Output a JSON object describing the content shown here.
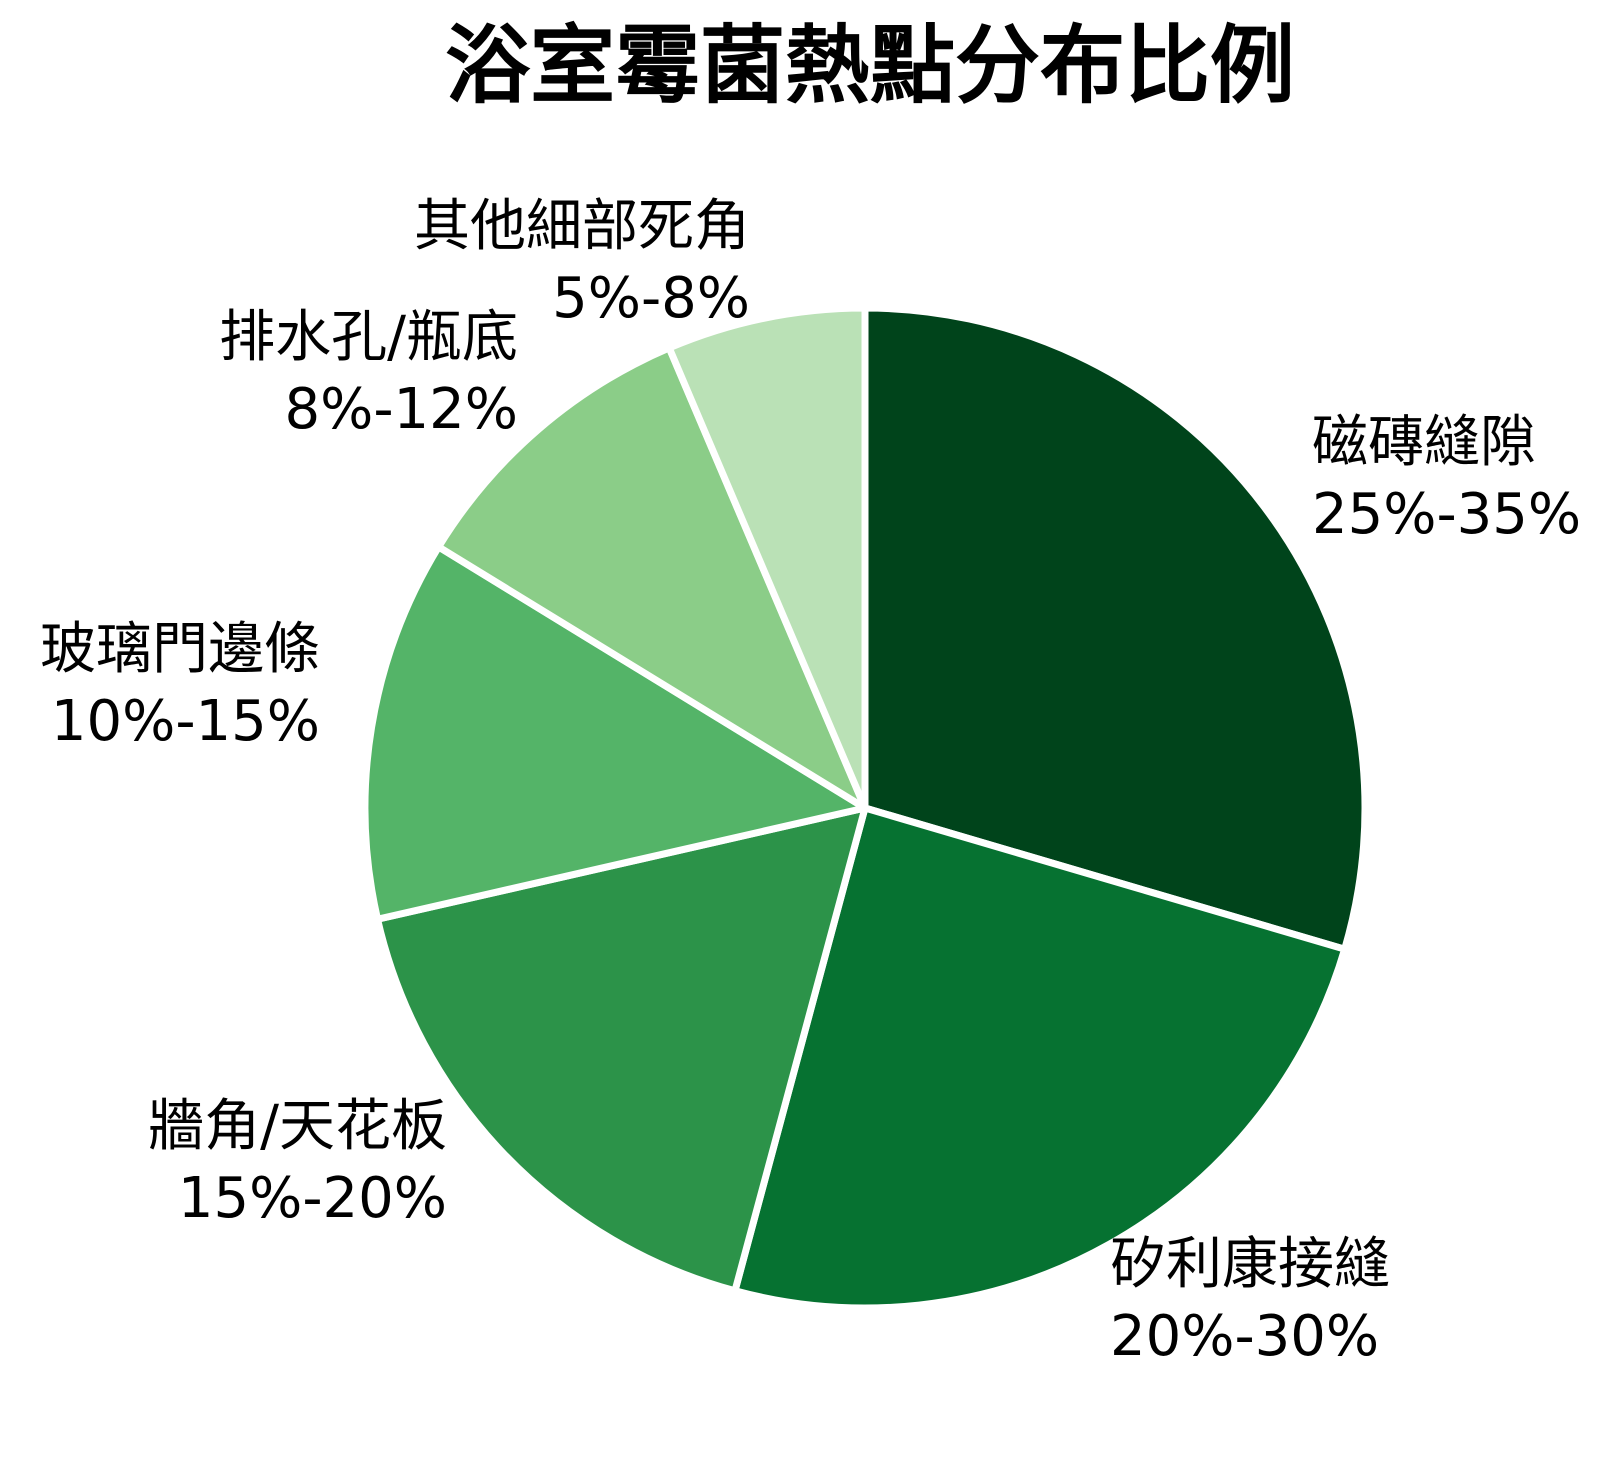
{
  "title": "浴室霉菌熱點分布比例",
  "chart_data": {
    "type": "pie",
    "title": "浴室霉菌熱點分布比例",
    "legend_position": "none",
    "labels_position": "outside",
    "start_angle": "12-oclock",
    "direction": "clockwise",
    "stroke_color": "#ffffff",
    "stroke_width": 7,
    "center": [
      865,
      808
    ],
    "radius": 500,
    "slices": [
      {
        "label": "磁磚縫隙",
        "range": "25%-35%",
        "value": 30,
        "color": "#00441b"
      },
      {
        "label": "矽利康接縫",
        "range": "20%-30%",
        "value": 25,
        "color": "#067231"
      },
      {
        "label": "牆角/天花板",
        "range": "15%-20%",
        "value": 17.5,
        "color": "#2c9349"
      },
      {
        "label": "玻璃門邊條",
        "range": "10%-15%",
        "value": 12.5,
        "color": "#54b468"
      },
      {
        "label": "排水孔/瓶底",
        "range": "8%-12%",
        "value": 10,
        "color": "#8bcd88"
      },
      {
        "label": "其他細部死角",
        "range": "5%-8%",
        "value": 6.5,
        "color": "#bae1b6"
      }
    ]
  }
}
